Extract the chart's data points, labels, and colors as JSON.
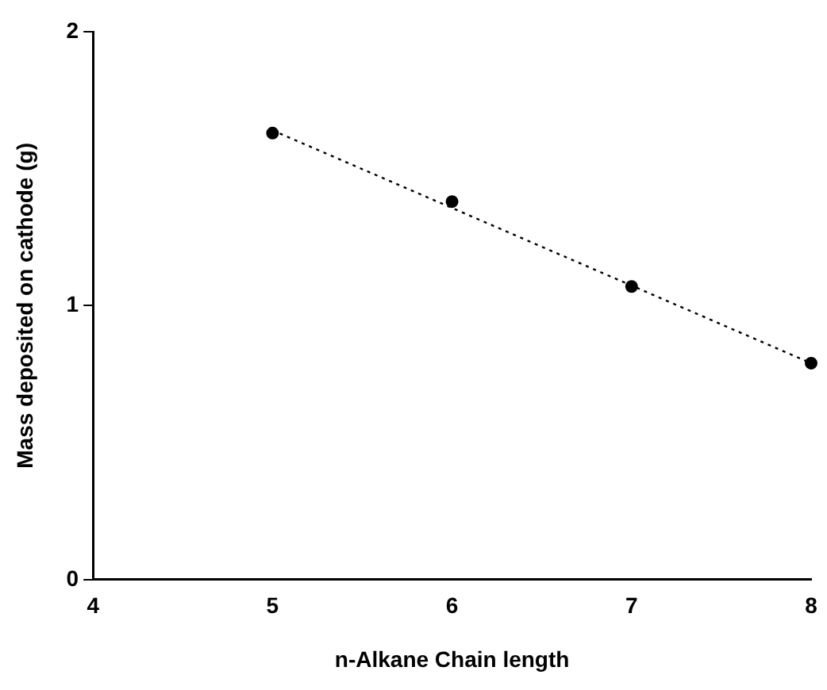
{
  "chart_data": {
    "type": "scatter",
    "xlabel": "n-Alkane Chain length",
    "ylabel": "Mass deposited on cathode (g)",
    "xlim": [
      4,
      8
    ],
    "xticks": [
      4,
      5,
      6,
      7,
      8
    ],
    "ylim": [
      0,
      2
    ],
    "yticks": [
      0,
      1,
      2
    ],
    "grid": false,
    "legend": false,
    "marker": "circle",
    "series": [
      {
        "color": "#000000",
        "x": [
          5,
          6,
          7,
          8
        ],
        "values": [
          1.63,
          1.38,
          1.07,
          0.79
        ]
      },
      {
        "type": "line",
        "color": "#000000",
        "x": [
          5,
          8
        ],
        "values": [
          1.64,
          0.79
        ],
        "marker": "none",
        "line_style": "dotted"
      }
    ]
  }
}
